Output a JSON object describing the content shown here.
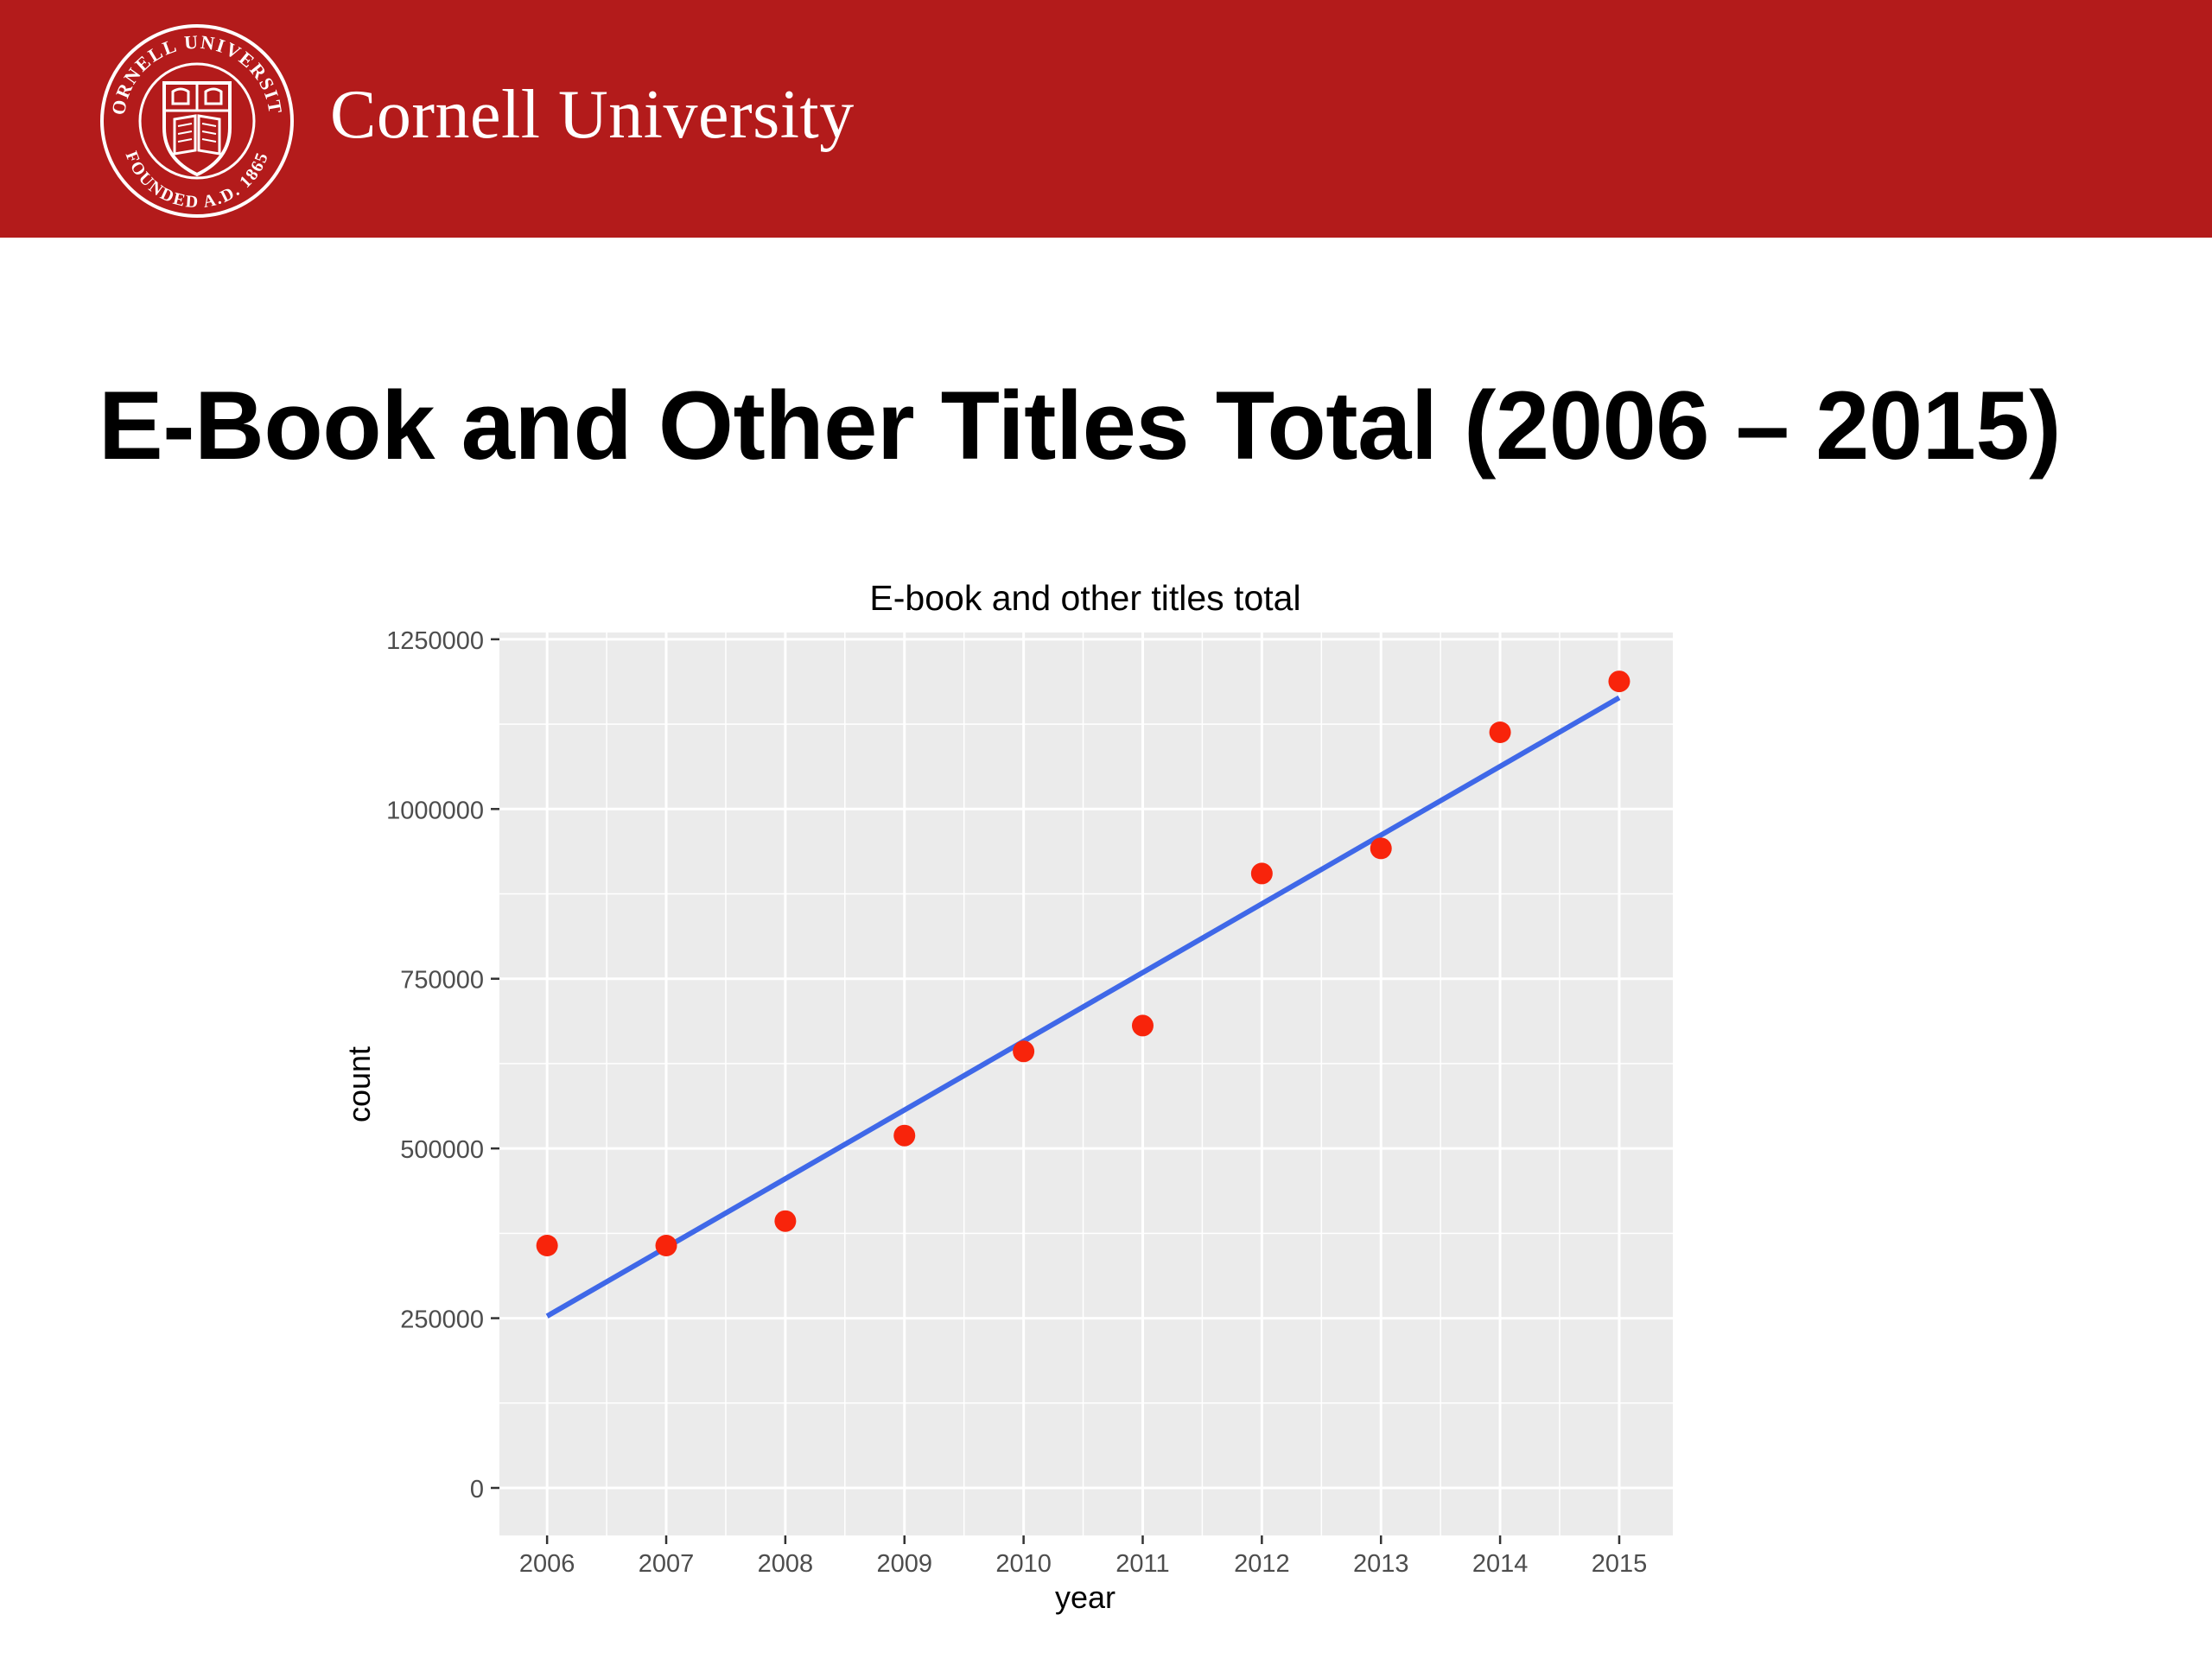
{
  "header": {
    "brand_color": "#b31b1b",
    "university_name": "Cornell University",
    "seal": {
      "icon": "cornell-seal-icon",
      "text_top": "CORNELL UNIVERSITY",
      "text_bottom": "FOUNDED A.D. 1865"
    }
  },
  "slide": {
    "title": "E-Book and Other Titles Total (2006 – 2015)"
  },
  "chart_data": {
    "type": "scatter",
    "title": "E-book and other titles total",
    "xlabel": "year",
    "ylabel": "count",
    "x": [
      2006,
      2007,
      2008,
      2009,
      2010,
      2011,
      2012,
      2013,
      2014,
      2015
    ],
    "x_tick_labels": [
      "2006",
      "2007",
      "2008",
      "2009",
      "2010",
      "2011",
      "2012",
      "2013",
      "2014",
      "2015"
    ],
    "y_tick_values": [
      0,
      250000,
      500000,
      750000,
      1000000,
      1250000
    ],
    "y_tick_labels": [
      "0",
      "250000",
      "500000",
      "750000",
      "1000000",
      "1250000"
    ],
    "ylim": [
      -70000,
      1260000
    ],
    "xlim": [
      2005.6,
      2015.45
    ],
    "grid": true,
    "series": [
      {
        "kind": "points",
        "color": "#f8240b",
        "values": [
          357000,
          357000,
          393000,
          519000,
          643000,
          681000,
          905000,
          942000,
          1113000,
          1188000
        ]
      },
      {
        "kind": "trend-line",
        "color": "#3f68e8",
        "values_at_endpoints": [
          253000,
          1164000
        ]
      }
    ],
    "panel_background": "#ebebeb",
    "gridline_color": "#ffffff"
  }
}
